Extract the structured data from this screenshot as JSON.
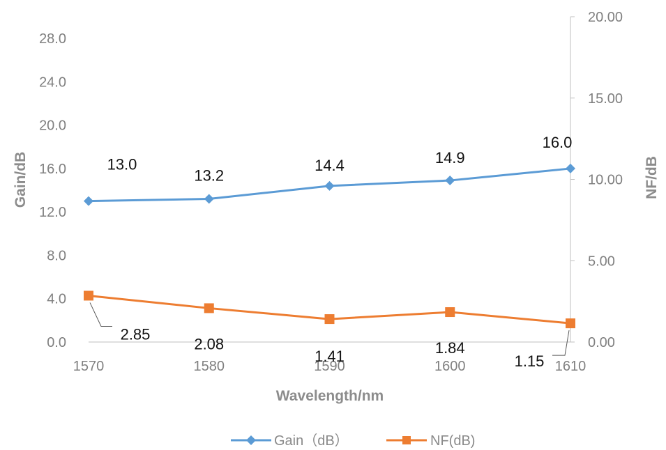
{
  "chart_data": {
    "type": "line",
    "xlabel": "Wavelength/nm",
    "ylabel": "Gain/dB",
    "y2label": "NF/dB",
    "categories": [
      "1570",
      "1580",
      "1590",
      "1600",
      "1610"
    ],
    "x": [
      1570,
      1580,
      1590,
      1600,
      1610
    ],
    "xlim": [
      1570,
      1610
    ],
    "ylim": [
      0,
      30
    ],
    "y2lim": [
      0,
      20
    ],
    "yticks": [
      "0.0",
      "4.0",
      "8.0",
      "12.0",
      "16.0",
      "20.0",
      "24.0",
      "28.0"
    ],
    "y2ticks": [
      "0.00",
      "5.00",
      "10.00",
      "15.00",
      "20.00"
    ],
    "grid": false,
    "legend_position": "bottom",
    "series": [
      {
        "name": "Gain（dB）",
        "axis": "left",
        "color": "#5B9BD5",
        "marker": "diamond",
        "values": [
          13.0,
          13.2,
          14.4,
          14.9,
          16.0
        ],
        "labels": [
          "13.0",
          "13.2",
          "14.4",
          "14.9",
          "16.0"
        ]
      },
      {
        "name": "NF(dB)",
        "axis": "right",
        "color": "#ED7D31",
        "marker": "square",
        "values": [
          2.85,
          2.08,
          1.41,
          1.84,
          1.15
        ],
        "labels": [
          "2.85",
          "2.08",
          "1.41",
          "1.84",
          "1.15"
        ]
      }
    ]
  }
}
